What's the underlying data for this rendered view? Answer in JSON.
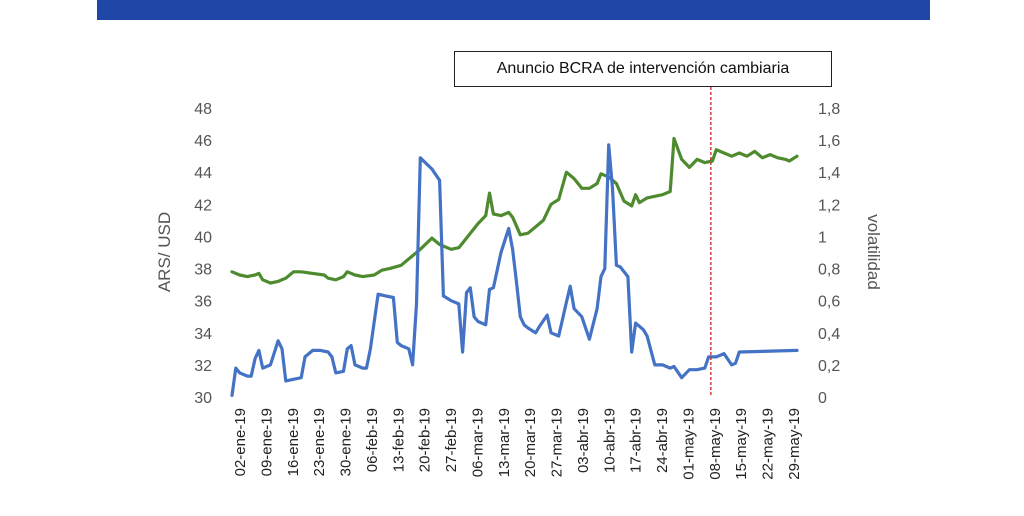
{
  "chart_data": {
    "type": "line",
    "annotation": "Anuncio BCRA de intervención cambiaria",
    "annotation_date": "08-may-19",
    "ylabel_left": "ARS/ USD",
    "ylabel_right": "volatilidad",
    "ylim_left": [
      30,
      48
    ],
    "yticks_left": [
      "30",
      "32",
      "34",
      "36",
      "38",
      "40",
      "42",
      "44",
      "46",
      "48"
    ],
    "ylim_right": [
      0,
      1.8
    ],
    "yticks_right": [
      "0",
      "0,2",
      "0,4",
      "0,6",
      "0,8",
      "1",
      "1,2",
      "1,4",
      "1,6",
      "1,8"
    ],
    "x_range": [
      0,
      147
    ],
    "x_tick_labels": [
      "02-ene-19",
      "09-ene-19",
      "16-ene-19",
      "23-ene-19",
      "30-ene-19",
      "06-feb-19",
      "13-feb-19",
      "20-feb-19",
      "27-feb-19",
      "06-mar-19",
      "13-mar-19",
      "20-mar-19",
      "27-mar-19",
      "03-abr-19",
      "10-abr-19",
      "17-abr-19",
      "24-abr-19",
      "01-may-19",
      "08-may-19",
      "15-may-19",
      "22-may-19",
      "29-may-19"
    ],
    "colors": {
      "exchange_rate": "#4e8a2e",
      "volatility": "#4472c4",
      "annotation_line": "#cc2222"
    },
    "series": [
      {
        "axis": "left",
        "points": [
          [
            0,
            37.8
          ],
          [
            2,
            37.6
          ],
          [
            4,
            37.5
          ],
          [
            6,
            37.6
          ],
          [
            7,
            37.7
          ],
          [
            8,
            37.3
          ],
          [
            10,
            37.1
          ],
          [
            12,
            37.2
          ],
          [
            14,
            37.4
          ],
          [
            16,
            37.8
          ],
          [
            18,
            37.8
          ],
          [
            21,
            37.7
          ],
          [
            24,
            37.6
          ],
          [
            25,
            37.4
          ],
          [
            27,
            37.3
          ],
          [
            29,
            37.5
          ],
          [
            30,
            37.8
          ],
          [
            32,
            37.6
          ],
          [
            34,
            37.5
          ],
          [
            37,
            37.6
          ],
          [
            39,
            37.9
          ],
          [
            41,
            38
          ],
          [
            44,
            38.2
          ],
          [
            46,
            38.6
          ],
          [
            49,
            39.2
          ],
          [
            52,
            39.9
          ],
          [
            54,
            39.5
          ],
          [
            57,
            39.2
          ],
          [
            59,
            39.3
          ],
          [
            61,
            39.9
          ],
          [
            64,
            40.8
          ],
          [
            66,
            41.3
          ],
          [
            67,
            42.7
          ],
          [
            68,
            41.4
          ],
          [
            70,
            41.3
          ],
          [
            72,
            41.5
          ],
          [
            73,
            41.2
          ],
          [
            75,
            40.1
          ],
          [
            77,
            40.2
          ],
          [
            79,
            40.6
          ],
          [
            81,
            41
          ],
          [
            83,
            42
          ],
          [
            85,
            42.3
          ],
          [
            87,
            44
          ],
          [
            89,
            43.6
          ],
          [
            91,
            43
          ],
          [
            93,
            43
          ],
          [
            95,
            43.3
          ],
          [
            96,
            43.9
          ],
          [
            98,
            43.7
          ],
          [
            100,
            43.3
          ],
          [
            102,
            42.2
          ],
          [
            104,
            41.9
          ],
          [
            105,
            42.6
          ],
          [
            106,
            42.1
          ],
          [
            108,
            42.4
          ],
          [
            110,
            42.5
          ],
          [
            112,
            42.6
          ],
          [
            114,
            42.8
          ],
          [
            115,
            46.1
          ],
          [
            117,
            44.8
          ],
          [
            119,
            44.3
          ],
          [
            121,
            44.8
          ],
          [
            123,
            44.6
          ],
          [
            125,
            44.7
          ],
          [
            126,
            45.4
          ],
          [
            128,
            45.2
          ],
          [
            130,
            45
          ],
          [
            132,
            45.2
          ],
          [
            134,
            45
          ],
          [
            136,
            45.3
          ],
          [
            138,
            44.9
          ],
          [
            140,
            45.1
          ],
          [
            142,
            44.9
          ],
          [
            144,
            44.8
          ],
          [
            145,
            44.7
          ],
          [
            147,
            45
          ]
        ]
      },
      {
        "axis": "right",
        "points": [
          [
            0,
            0.01
          ],
          [
            1,
            0.18
          ],
          [
            2,
            0.15
          ],
          [
            4,
            0.13
          ],
          [
            5,
            0.13
          ],
          [
            6,
            0.24
          ],
          [
            7,
            0.29
          ],
          [
            8,
            0.18
          ],
          [
            10,
            0.2
          ],
          [
            12,
            0.35
          ],
          [
            13,
            0.3
          ],
          [
            14,
            0.1
          ],
          [
            16,
            0.11
          ],
          [
            18,
            0.12
          ],
          [
            19,
            0.25
          ],
          [
            21,
            0.29
          ],
          [
            23,
            0.29
          ],
          [
            25,
            0.28
          ],
          [
            26,
            0.25
          ],
          [
            27,
            0.15
          ],
          [
            29,
            0.16
          ],
          [
            30,
            0.3
          ],
          [
            31,
            0.32
          ],
          [
            32,
            0.2
          ],
          [
            34,
            0.18
          ],
          [
            35,
            0.18
          ],
          [
            36,
            0.3
          ],
          [
            38,
            0.64
          ],
          [
            40,
            0.63
          ],
          [
            42,
            0.62
          ],
          [
            43,
            0.34
          ],
          [
            44,
            0.32
          ],
          [
            46,
            0.3
          ],
          [
            47,
            0.2
          ],
          [
            48,
            0.58
          ],
          [
            49,
            1.49
          ],
          [
            52,
            1.42
          ],
          [
            54,
            1.35
          ],
          [
            55,
            0.63
          ],
          [
            57,
            0.6
          ],
          [
            59,
            0.58
          ],
          [
            60,
            0.28
          ],
          [
            61,
            0.65
          ],
          [
            62,
            0.68
          ],
          [
            63,
            0.5
          ],
          [
            64,
            0.47
          ],
          [
            66,
            0.45
          ],
          [
            67,
            0.67
          ],
          [
            68,
            0.68
          ],
          [
            70,
            0.9
          ],
          [
            72,
            1.05
          ],
          [
            73,
            0.92
          ],
          [
            74,
            0.72
          ],
          [
            75,
            0.5
          ],
          [
            76,
            0.45
          ],
          [
            77,
            0.43
          ],
          [
            79,
            0.4
          ],
          [
            80,
            0.44
          ],
          [
            82,
            0.51
          ],
          [
            83,
            0.4
          ],
          [
            85,
            0.38
          ],
          [
            87,
            0.59
          ],
          [
            88,
            0.69
          ],
          [
            89,
            0.55
          ],
          [
            91,
            0.5
          ],
          [
            93,
            0.36
          ],
          [
            95,
            0.55
          ],
          [
            96,
            0.75
          ],
          [
            97,
            0.8
          ],
          [
            98,
            1.57
          ],
          [
            99,
            1.3
          ],
          [
            100,
            0.82
          ],
          [
            101,
            0.81
          ],
          [
            103,
            0.75
          ],
          [
            104,
            0.28
          ],
          [
            105,
            0.46
          ],
          [
            107,
            0.42
          ],
          [
            108,
            0.38
          ],
          [
            110,
            0.2
          ],
          [
            112,
            0.2
          ],
          [
            114,
            0.18
          ],
          [
            115,
            0.19
          ],
          [
            117,
            0.12
          ],
          [
            119,
            0.17
          ],
          [
            121,
            0.17
          ],
          [
            123,
            0.18
          ],
          [
            124,
            0.25
          ],
          [
            126,
            0.25
          ],
          [
            127,
            0.26
          ],
          [
            128,
            0.27
          ],
          [
            130,
            0.2
          ],
          [
            131,
            0.21
          ],
          [
            132,
            0.28
          ],
          [
            147,
            0.29
          ]
        ]
      }
    ]
  }
}
